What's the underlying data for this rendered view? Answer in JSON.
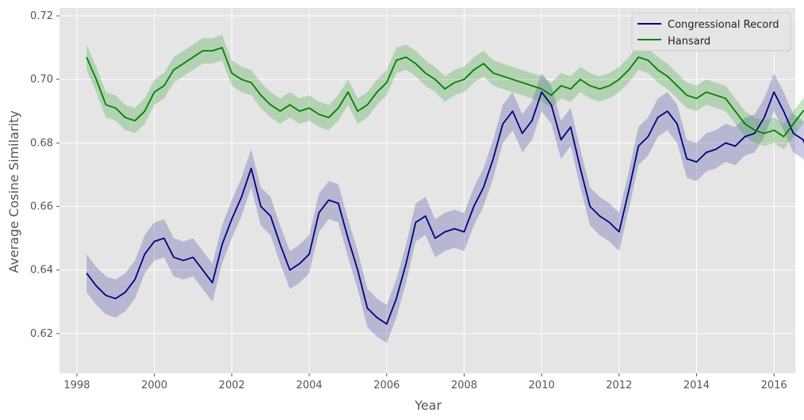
{
  "chart_data": {
    "type": "line",
    "title": "",
    "xlabel": "Year",
    "ylabel": "Average Cosine Similarity",
    "xlim": [
      1997.55,
      2016.55
    ],
    "ylim": [
      0.6075,
      0.7225
    ],
    "xticks": [
      1998,
      2000,
      2002,
      2004,
      2006,
      2008,
      2010,
      2012,
      2014,
      2016
    ],
    "xtick_labels": [
      "1998",
      "2000",
      "2002",
      "2004",
      "2006",
      "2008",
      "2010",
      "2012",
      "2014",
      "2016"
    ],
    "yticks": [
      0.62,
      0.64,
      0.66,
      0.68,
      0.7,
      0.72
    ],
    "ytick_labels": [
      "0.62",
      "0.64",
      "0.66",
      "0.68",
      "0.70",
      "0.72"
    ],
    "grid": true,
    "legend_position": "top-right",
    "series": [
      {
        "name": "Congressional Record",
        "color": "#000080",
        "band_color": "#4040a0",
        "band_halfwidth": 0.006,
        "points": [
          [
            1998.25,
            0.639
          ],
          [
            1998.5,
            0.635
          ],
          [
            1998.75,
            0.632
          ],
          [
            1999.0,
            0.631
          ],
          [
            1999.25,
            0.633
          ],
          [
            1999.5,
            0.637
          ],
          [
            1999.75,
            0.645
          ],
          [
            2000.0,
            0.649
          ],
          [
            2000.25,
            0.65
          ],
          [
            2000.5,
            0.644
          ],
          [
            2000.75,
            0.643
          ],
          [
            2001.0,
            0.644
          ],
          [
            2001.25,
            0.64
          ],
          [
            2001.5,
            0.636
          ],
          [
            2001.75,
            0.648
          ],
          [
            2002.0,
            0.656
          ],
          [
            2002.25,
            0.663
          ],
          [
            2002.5,
            0.672
          ],
          [
            2002.75,
            0.66
          ],
          [
            2003.0,
            0.657
          ],
          [
            2003.25,
            0.648
          ],
          [
            2003.5,
            0.64
          ],
          [
            2003.75,
            0.642
          ],
          [
            2004.0,
            0.645
          ],
          [
            2004.25,
            0.658
          ],
          [
            2004.5,
            0.662
          ],
          [
            2004.75,
            0.661
          ],
          [
            2005.0,
            0.65
          ],
          [
            2005.25,
            0.64
          ],
          [
            2005.5,
            0.628
          ],
          [
            2005.75,
            0.625
          ],
          [
            2006.0,
            0.623
          ],
          [
            2006.25,
            0.631
          ],
          [
            2006.5,
            0.642
          ],
          [
            2006.75,
            0.655
          ],
          [
            2007.0,
            0.657
          ],
          [
            2007.25,
            0.65
          ],
          [
            2007.5,
            0.652
          ],
          [
            2007.75,
            0.653
          ],
          [
            2008.0,
            0.652
          ],
          [
            2008.25,
            0.66
          ],
          [
            2008.5,
            0.666
          ],
          [
            2008.75,
            0.675
          ],
          [
            2009.0,
            0.686
          ],
          [
            2009.25,
            0.69
          ],
          [
            2009.5,
            0.683
          ],
          [
            2009.75,
            0.687
          ],
          [
            2010.0,
            0.696
          ],
          [
            2010.25,
            0.692
          ],
          [
            2010.5,
            0.681
          ],
          [
            2010.75,
            0.685
          ],
          [
            2011.0,
            0.672
          ],
          [
            2011.25,
            0.66
          ],
          [
            2011.5,
            0.657
          ],
          [
            2011.75,
            0.655
          ],
          [
            2012.0,
            0.652
          ],
          [
            2012.25,
            0.665
          ],
          [
            2012.5,
            0.679
          ],
          [
            2012.75,
            0.682
          ],
          [
            2013.0,
            0.688
          ],
          [
            2013.25,
            0.69
          ],
          [
            2013.5,
            0.686
          ],
          [
            2013.75,
            0.675
          ],
          [
            2014.0,
            0.674
          ],
          [
            2014.25,
            0.677
          ],
          [
            2014.5,
            0.678
          ],
          [
            2014.75,
            0.68
          ],
          [
            2015.0,
            0.679
          ],
          [
            2015.25,
            0.682
          ],
          [
            2015.5,
            0.683
          ],
          [
            2015.75,
            0.688
          ],
          [
            2016.0,
            0.696
          ],
          [
            2016.25,
            0.69
          ],
          [
            2016.5,
            0.683
          ],
          [
            2016.75,
            0.681
          ],
          [
            2016.9,
            0.677
          ]
        ]
      },
      {
        "name": "Hansard",
        "color": "#008000",
        "band_color": "#33a033",
        "band_halfwidth": 0.004,
        "points": [
          [
            1998.25,
            0.707
          ],
          [
            1998.5,
            0.7
          ],
          [
            1998.75,
            0.692
          ],
          [
            1999.0,
            0.691
          ],
          [
            1999.25,
            0.688
          ],
          [
            1999.5,
            0.687
          ],
          [
            1999.75,
            0.69
          ],
          [
            2000.0,
            0.696
          ],
          [
            2000.25,
            0.698
          ],
          [
            2000.5,
            0.703
          ],
          [
            2000.75,
            0.705
          ],
          [
            2001.0,
            0.707
          ],
          [
            2001.25,
            0.709
          ],
          [
            2001.5,
            0.709
          ],
          [
            2001.75,
            0.71
          ],
          [
            2002.0,
            0.702
          ],
          [
            2002.25,
            0.7
          ],
          [
            2002.5,
            0.699
          ],
          [
            2002.75,
            0.695
          ],
          [
            2003.0,
            0.692
          ],
          [
            2003.25,
            0.69
          ],
          [
            2003.5,
            0.692
          ],
          [
            2003.75,
            0.69
          ],
          [
            2004.0,
            0.691
          ],
          [
            2004.25,
            0.689
          ],
          [
            2004.5,
            0.688
          ],
          [
            2004.75,
            0.691
          ],
          [
            2005.0,
            0.696
          ],
          [
            2005.25,
            0.69
          ],
          [
            2005.5,
            0.692
          ],
          [
            2005.75,
            0.696
          ],
          [
            2006.0,
            0.699
          ],
          [
            2006.25,
            0.706
          ],
          [
            2006.5,
            0.707
          ],
          [
            2006.75,
            0.705
          ],
          [
            2007.0,
            0.702
          ],
          [
            2007.25,
            0.7
          ],
          [
            2007.5,
            0.697
          ],
          [
            2007.75,
            0.699
          ],
          [
            2008.0,
            0.7
          ],
          [
            2008.25,
            0.703
          ],
          [
            2008.5,
            0.705
          ],
          [
            2008.75,
            0.702
          ],
          [
            2009.0,
            0.701
          ],
          [
            2009.25,
            0.7
          ],
          [
            2009.5,
            0.699
          ],
          [
            2009.75,
            0.698
          ],
          [
            2010.0,
            0.697
          ],
          [
            2010.25,
            0.695
          ],
          [
            2010.5,
            0.698
          ],
          [
            2010.75,
            0.697
          ],
          [
            2011.0,
            0.7
          ],
          [
            2011.25,
            0.698
          ],
          [
            2011.5,
            0.697
          ],
          [
            2011.75,
            0.698
          ],
          [
            2012.0,
            0.7
          ],
          [
            2012.25,
            0.703
          ],
          [
            2012.5,
            0.707
          ],
          [
            2012.75,
            0.706
          ],
          [
            2013.0,
            0.703
          ],
          [
            2013.25,
            0.701
          ],
          [
            2013.5,
            0.698
          ],
          [
            2013.75,
            0.695
          ],
          [
            2014.0,
            0.694
          ],
          [
            2014.25,
            0.696
          ],
          [
            2014.5,
            0.695
          ],
          [
            2014.75,
            0.694
          ],
          [
            2015.0,
            0.69
          ],
          [
            2015.25,
            0.686
          ],
          [
            2015.5,
            0.684
          ],
          [
            2015.75,
            0.683
          ],
          [
            2016.0,
            0.684
          ],
          [
            2016.25,
            0.682
          ],
          [
            2016.5,
            0.686
          ],
          [
            2016.75,
            0.69
          ],
          [
            2016.9,
            0.691
          ]
        ]
      }
    ]
  },
  "colors": {
    "plot_background": "#e5e5e5",
    "grid": "#ffffff",
    "legend_background": "#e5e5e5",
    "legend_border": "#cccccc"
  }
}
